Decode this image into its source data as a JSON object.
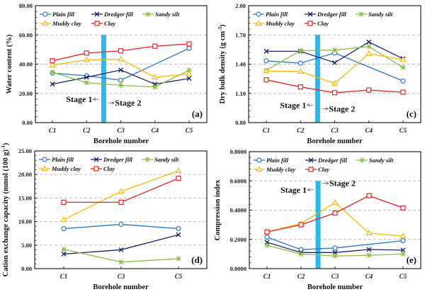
{
  "series_styles": [
    {
      "name": "Plain fill",
      "color": "#2878c2",
      "marker": "circle"
    },
    {
      "name": "Dredger fill",
      "color": "#1c2667",
      "marker": "x"
    },
    {
      "name": "Sandy silt",
      "color": "#8cbc4c",
      "marker": "star"
    },
    {
      "name": "Muddy clay",
      "color": "#f6bb0a",
      "marker": "triangle"
    },
    {
      "name": "Clay",
      "color": "#e8231f",
      "marker": "square"
    }
  ],
  "stage_bar_color": "#2bb8ea",
  "chart_data": [
    {
      "id": "a",
      "type": "line",
      "panel_label": "(a)",
      "xlabel": "Borehole number",
      "ylabel": "Water content (%)",
      "categories": [
        "C1",
        "C2",
        "C3",
        "C4",
        "C5"
      ],
      "ylim": [
        0,
        80
      ],
      "yticks": [
        "0.00",
        "20.00",
        "40.00",
        "60.00",
        "80.00"
      ],
      "ytick_values": [
        0,
        20,
        40,
        60,
        80
      ],
      "grid_values": [
        20,
        40,
        60
      ],
      "grid": "dashed horizontal",
      "legend": "top",
      "stage_divider": {
        "between": [
          "C2",
          "C3"
        ],
        "top_value": 60,
        "stage1_label": "Stage 1",
        "stage2_label": "Stage 2",
        "label_value": 14
      },
      "series": [
        {
          "name": "Plain fill",
          "values": [
            33.9,
            32.0,
            29.0,
            null,
            50.8
          ]
        },
        {
          "name": "Dredger fill",
          "values": [
            26.3,
            31.0,
            36.0,
            26.3,
            30.2
          ]
        },
        {
          "name": "Sandy silt",
          "values": [
            34.5,
            27.3,
            25.5,
            24.4,
            35.8
          ]
        },
        {
          "name": "Muddy clay",
          "values": [
            39.4,
            42.9,
            43.4,
            31.0,
            33.3
          ]
        },
        {
          "name": "Clay",
          "values": [
            42.3,
            47.6,
            49.1,
            52.3,
            53.8
          ]
        }
      ]
    },
    {
      "id": "c",
      "type": "line",
      "panel_label": "(c)",
      "xlabel": "Borehole number",
      "ylabel": "Dry bulk density (g cm",
      "ylabel_sup": "-3",
      "ylabel_tail": ")",
      "categories": [
        "C1",
        "C2",
        "C3",
        "C4",
        "C5"
      ],
      "ylim": [
        0.8,
        2.0
      ],
      "yticks": [
        "0.80",
        "1.10",
        "1.40",
        "1.70",
        "2.00"
      ],
      "ytick_values": [
        0.8,
        1.1,
        1.4,
        1.7,
        2.0
      ],
      "grid_values": [
        1.1,
        1.4,
        1.7
      ],
      "grid": "dashed horizontal",
      "legend": "top",
      "stage_divider": {
        "between": [
          "C2",
          "C3"
        ],
        "top_value": 1.7,
        "stage1_label": "Stage 1",
        "stage2_label": "Stage 2",
        "label_value": 0.95
      },
      "series": [
        {
          "name": "Plain fill",
          "values": [
            1.434,
            1.41,
            1.515,
            null,
            1.227
          ]
        },
        {
          "name": "Dredger fill",
          "values": [
            1.532,
            1.532,
            1.415,
            1.627,
            1.456
          ]
        },
        {
          "name": "Sandy silt",
          "values": [
            1.337,
            1.539,
            1.544,
            1.58,
            1.366
          ]
        },
        {
          "name": "Muddy clay",
          "values": [
            1.329,
            1.324,
            1.202,
            1.507,
            1.446
          ]
        },
        {
          "name": "Clay",
          "values": [
            1.239,
            1.166,
            1.107,
            1.134,
            1.112
          ]
        }
      ]
    },
    {
      "id": "d",
      "type": "line",
      "panel_label": "(d)",
      "xlabel": "Borehole number",
      "ylabel": "Cation exchange capacity (mmol (100 g)",
      "ylabel_sup": "-1",
      "ylabel_tail": ")",
      "categories": [
        "C1",
        "C3",
        "C5"
      ],
      "ylim": [
        0,
        25
      ],
      "yticks": [
        "0.00",
        "5.00",
        "10.00",
        "15.00",
        "20.00",
        "25.00"
      ],
      "ytick_values": [
        0,
        5,
        10,
        15,
        20,
        25
      ],
      "grid_values": [
        5,
        10,
        15,
        20
      ],
      "grid": "dashed horizontal",
      "legend": "top",
      "stage_divider": null,
      "series": [
        {
          "name": "Plain fill",
          "values": [
            8.5,
            9.4,
            8.5
          ]
        },
        {
          "name": "Dredger fill",
          "values": [
            3.1,
            4.0,
            7.2
          ]
        },
        {
          "name": "Sandy silt",
          "values": [
            4.1,
            1.4,
            2.1
          ]
        },
        {
          "name": "Muddy clay",
          "values": [
            10.4,
            16.4,
            20.8
          ]
        },
        {
          "name": "Clay",
          "values": [
            14.1,
            14.1,
            19.2
          ]
        }
      ]
    },
    {
      "id": "e",
      "type": "line",
      "panel_label": "(e)",
      "xlabel": "Borehole number",
      "ylabel": "Compression index",
      "categories": [
        "C1",
        "C2",
        "C3",
        "C4",
        "C5"
      ],
      "ylim": [
        0,
        0.8
      ],
      "yticks": [
        "0.0000",
        "0.2000",
        "0.4000",
        "0.6000",
        "0.8000"
      ],
      "ytick_values": [
        0,
        0.2,
        0.4,
        0.6,
        0.8
      ],
      "grid_values": [
        0.2,
        0.4,
        0.6
      ],
      "grid": "dashed horizontal",
      "legend": "top",
      "stage_divider": {
        "between": [
          "C2",
          "C3"
        ],
        "top_value": 0.6,
        "stage1_label": "Stage 1",
        "stage2_label": "Stage 2",
        "label_value": 0.52,
        "stage2_value": 0.565
      },
      "series": [
        {
          "name": "Plain fill",
          "values": [
            0.215,
            0.13,
            0.141,
            null,
            0.191
          ]
        },
        {
          "name": "Dredger fill",
          "values": [
            0.18,
            0.11,
            0.11,
            0.131,
            0.126
          ]
        },
        {
          "name": "Sandy silt",
          "values": [
            0.159,
            0.1,
            0.086,
            0.091,
            0.1
          ]
        },
        {
          "name": "Muddy clay",
          "values": [
            0.251,
            0.308,
            0.452,
            0.243,
            0.222
          ]
        },
        {
          "name": "Clay",
          "values": [
            0.251,
            0.3,
            0.38,
            0.499,
            0.415
          ]
        }
      ]
    }
  ]
}
